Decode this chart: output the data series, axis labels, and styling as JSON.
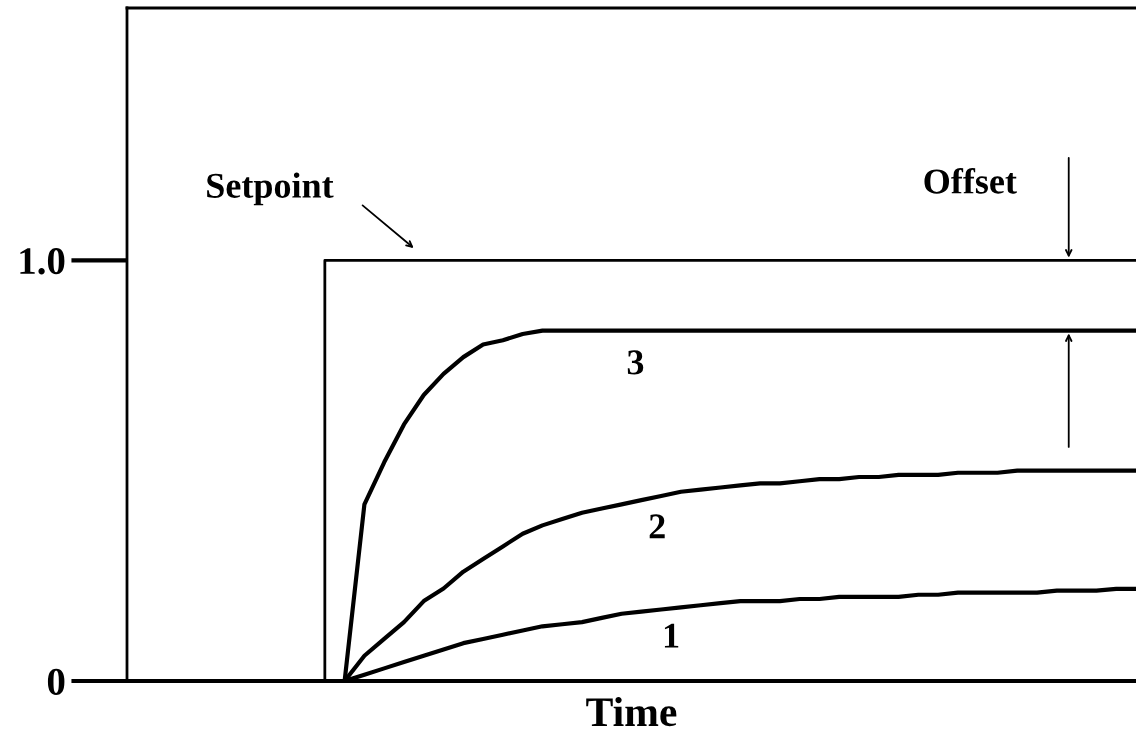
{
  "chart_data": {
    "type": "line",
    "xlabel": "Time",
    "categories": [
      null,
      null,
      null,
      null,
      null,
      null,
      null,
      null,
      null,
      null,
      null,
      null,
      null,
      null,
      null,
      null,
      null,
      null,
      null,
      null,
      null,
      null,
      null,
      null,
      null,
      null,
      null,
      null,
      null,
      null,
      null,
      null,
      null,
      null,
      null,
      null,
      null,
      null,
      null,
      null,
      null,
      null,
      null,
      null,
      null,
      null,
      null,
      null,
      null,
      null,
      null,
      null
    ],
    "series": [
      {
        "name": "Setpoint",
        "type": "step",
        "color": "#000000",
        "values": [
          0,
          0,
          0,
          0,
          0,
          0,
          0,
          0,
          0,
          0,
          0,
          1,
          1,
          1,
          1,
          1,
          1,
          1,
          1,
          1,
          1,
          1,
          1,
          1,
          1,
          1,
          1,
          1,
          1,
          1,
          1,
          1,
          1,
          1,
          1,
          1,
          1,
          1,
          1,
          1,
          1,
          1,
          1,
          1,
          1,
          1,
          1,
          1,
          1,
          1,
          1,
          1
        ]
      },
      {
        "name": "3",
        "color": "#000000",
        "values": [
          null,
          null,
          null,
          null,
          null,
          null,
          null,
          null,
          null,
          null,
          null,
          0,
          0.42,
          0.52,
          0.61,
          0.68,
          0.73,
          0.77,
          0.8,
          0.81,
          0.825,
          0.833,
          0.833,
          0.833,
          0.833,
          0.833,
          0.833,
          0.833,
          0.833,
          0.833,
          0.833,
          0.833,
          0.833,
          0.833,
          0.833,
          0.833,
          0.833,
          0.833,
          0.833,
          0.833,
          0.833,
          0.833,
          0.833,
          0.833,
          0.833,
          0.833,
          0.833,
          0.833,
          0.833,
          0.833,
          0.833,
          0.833
        ]
      },
      {
        "name": "2",
        "color": "#000000",
        "values": [
          null,
          null,
          null,
          null,
          null,
          null,
          null,
          null,
          null,
          null,
          null,
          0,
          0.06,
          0.1,
          0.14,
          0.19,
          0.22,
          0.26,
          0.29,
          0.32,
          0.35,
          0.37,
          0.385,
          0.4,
          0.41,
          0.42,
          0.43,
          0.44,
          0.45,
          0.455,
          0.46,
          0.465,
          0.47,
          0.47,
          0.475,
          0.48,
          0.48,
          0.485,
          0.485,
          0.49,
          0.49,
          0.49,
          0.495,
          0.495,
          0.495,
          0.5,
          0.5,
          0.5,
          0.5,
          0.5,
          0.5,
          0.5
        ]
      },
      {
        "name": "1",
        "color": "#000000",
        "values": [
          null,
          null,
          null,
          null,
          null,
          null,
          null,
          null,
          null,
          null,
          null,
          0,
          0.015,
          0.03,
          0.045,
          0.06,
          0.075,
          0.09,
          0.1,
          0.11,
          0.12,
          0.13,
          0.135,
          0.14,
          0.15,
          0.16,
          0.165,
          0.17,
          0.175,
          0.18,
          0.185,
          0.19,
          0.19,
          0.19,
          0.195,
          0.195,
          0.2,
          0.2,
          0.2,
          0.2,
          0.205,
          0.205,
          0.21,
          0.21,
          0.21,
          0.21,
          0.21,
          0.215,
          0.215,
          0.215,
          0.219,
          0.219
        ]
      }
    ],
    "annotations": [
      "Offset"
    ],
    "ylim": [
      0,
      1.6
    ],
    "yticks": [
      0,
      {
        "value": 1,
        "label": "1.0"
      }
    ],
    "legend": false,
    "grid": false
  }
}
